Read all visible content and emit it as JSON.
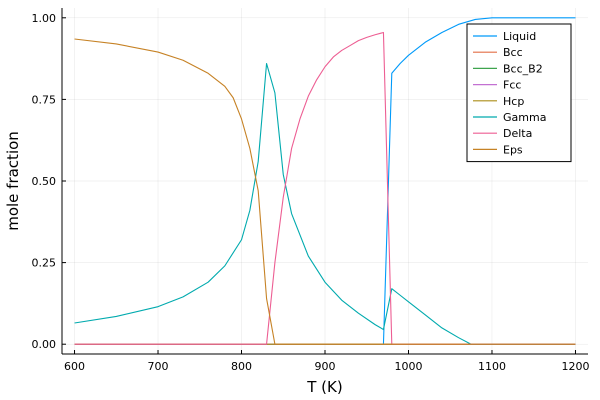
{
  "chart_data": {
    "type": "line",
    "xlabel": "T (K)",
    "ylabel": "mole fraction",
    "xlim": [
      585,
      1215
    ],
    "ylim": [
      -0.03,
      1.03
    ],
    "xticks": [
      600,
      700,
      800,
      900,
      1000,
      1100,
      1200
    ],
    "xtick_labels": [
      "600",
      "700",
      "800",
      "900",
      "1000",
      "1100",
      "1200"
    ],
    "yticks": [
      0,
      0.25,
      0.5,
      0.75,
      1.0
    ],
    "ytick_labels": [
      "0.00",
      "0.25",
      "0.50",
      "0.75",
      "1.00"
    ],
    "grid": true,
    "legend_position": "top-right",
    "series": [
      {
        "name": "Liquid",
        "color": "#009AFA",
        "x": [
          600,
          970,
          980,
          990,
          1000,
          1020,
          1040,
          1060,
          1080,
          1100,
          1200
        ],
        "y": [
          0,
          0,
          0.83,
          0.86,
          0.885,
          0.925,
          0.955,
          0.98,
          0.995,
          1.0,
          1.0
        ]
      },
      {
        "name": "Bcc",
        "color": "#E36F47",
        "x": [
          600,
          1200
        ],
        "y": [
          0,
          0
        ]
      },
      {
        "name": "Bcc_B2",
        "color": "#3EA44E",
        "x": [
          600,
          1200
        ],
        "y": [
          0,
          0
        ]
      },
      {
        "name": "Fcc",
        "color": "#C371D2",
        "x": [
          600,
          1200
        ],
        "y": [
          0,
          0
        ]
      },
      {
        "name": "Hcp",
        "color": "#AC8E18",
        "x": [
          600,
          1200
        ],
        "y": [
          0,
          0
        ]
      },
      {
        "name": "Gamma",
        "color": "#00AAAE",
        "x": [
          600,
          650,
          700,
          730,
          760,
          780,
          800,
          810,
          820,
          830,
          840,
          850,
          860,
          880,
          900,
          920,
          940,
          960,
          970,
          980,
          990,
          1000,
          1020,
          1040,
          1060,
          1075,
          1100,
          1200
        ],
        "y": [
          0.065,
          0.085,
          0.115,
          0.145,
          0.19,
          0.24,
          0.32,
          0.41,
          0.56,
          0.86,
          0.77,
          0.52,
          0.4,
          0.27,
          0.19,
          0.135,
          0.095,
          0.06,
          0.045,
          0.17,
          0.15,
          0.13,
          0.09,
          0.05,
          0.02,
          0.0,
          0.0,
          0.0
        ]
      },
      {
        "name": "Delta",
        "color": "#ED5E93",
        "x": [
          600,
          830,
          840,
          850,
          860,
          870,
          880,
          890,
          900,
          910,
          920,
          930,
          940,
          950,
          960,
          970,
          980,
          990,
          1200
        ],
        "y": [
          0,
          0,
          0.25,
          0.45,
          0.6,
          0.69,
          0.76,
          0.81,
          0.85,
          0.88,
          0.9,
          0.915,
          0.93,
          0.94,
          0.948,
          0.955,
          0,
          0,
          0
        ]
      },
      {
        "name": "Eps",
        "color": "#C68225",
        "x": [
          600,
          650,
          700,
          730,
          760,
          780,
          790,
          800,
          810,
          820,
          830,
          840,
          850,
          1200
        ],
        "y": [
          0.935,
          0.92,
          0.895,
          0.87,
          0.83,
          0.79,
          0.755,
          0.69,
          0.6,
          0.47,
          0.14,
          0.0,
          0.0,
          0.0
        ]
      }
    ]
  }
}
